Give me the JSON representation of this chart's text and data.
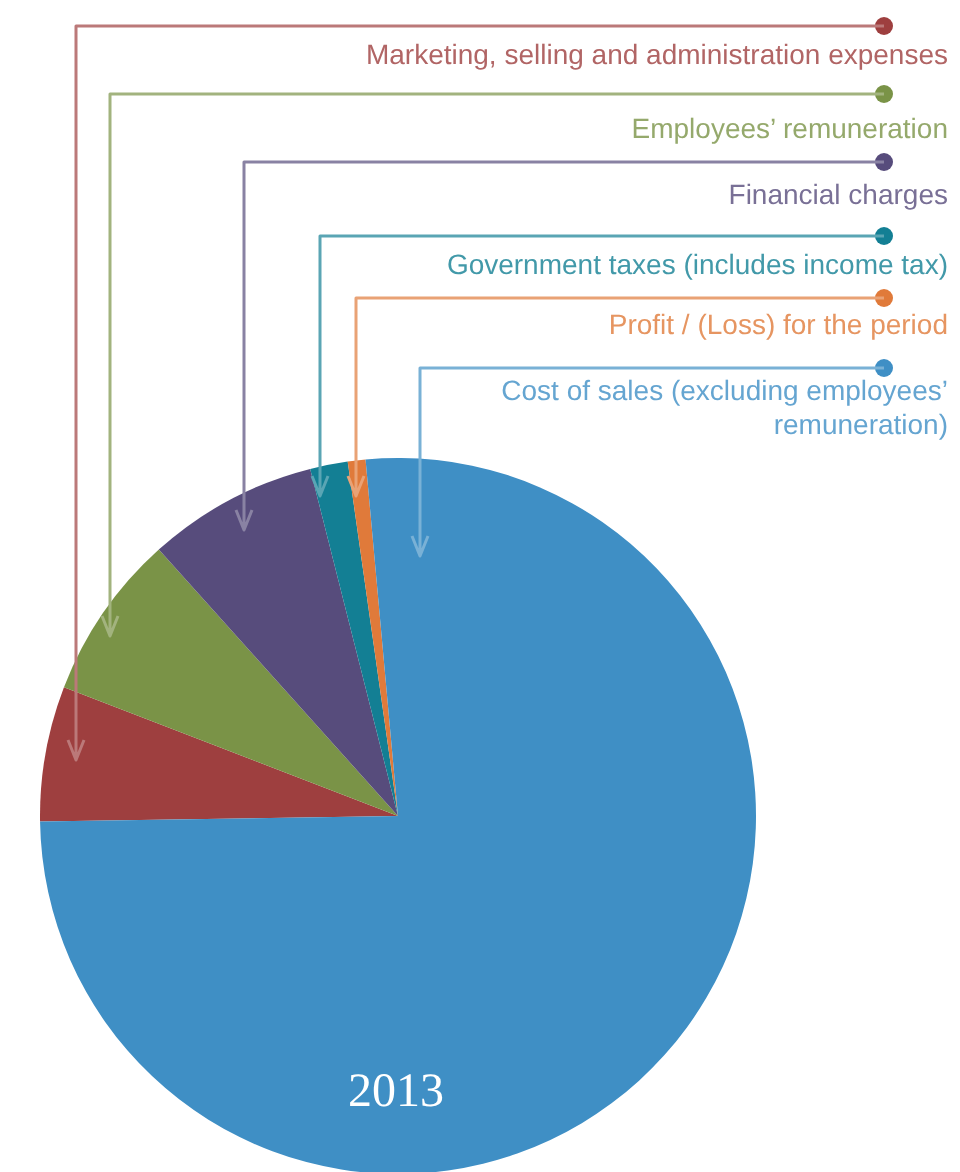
{
  "chart_data": {
    "type": "pie",
    "title": "2013",
    "categories": [
      "Marketing, selling and administration expenses",
      "Employees’ remuneration",
      "Financial charges",
      "Government taxes (includes income tax)",
      "Profit / (Loss) for the period",
      "Cost of sales (excluding employees’ remuneration)"
    ],
    "values": [
      6.1,
      7.5,
      7.7,
      1.7,
      0.8,
      76.2
    ],
    "colors": [
      "#9e3f3f",
      "#7a9347",
      "#574c7c",
      "#137f94",
      "#e07a3a",
      "#3f8fc5"
    ],
    "legend": "top right"
  }
}
